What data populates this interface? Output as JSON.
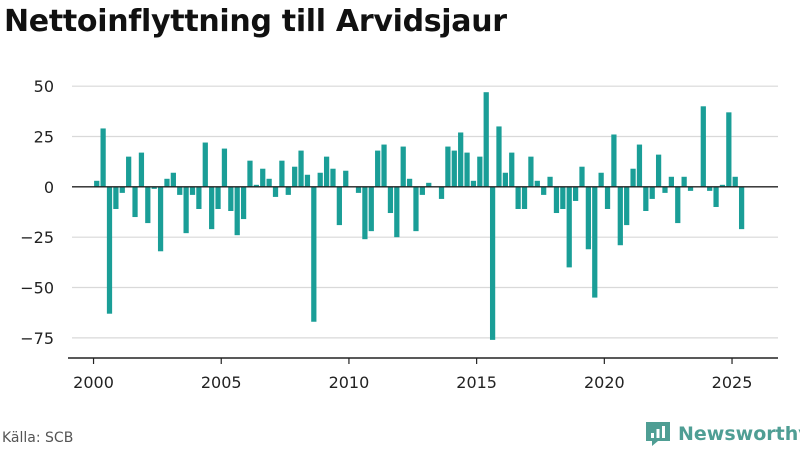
{
  "title": "Nettoinflyttning till Arvidsjaur",
  "source": "Källa: SCB",
  "brand": {
    "name": "Newsworthy",
    "logo_icon": "newsworthy-logo-icon"
  },
  "colors": {
    "bar": "#1a9e97",
    "grid": "#d9d9d9",
    "axis": "#222222",
    "brand": "#4f9e94"
  },
  "chart_data": {
    "type": "bar",
    "title": "Nettoinflyttning till Arvidsjaur",
    "xlabel": "",
    "ylabel": "",
    "ylim": [
      -85,
      62
    ],
    "xlim": [
      1999.0,
      2026.8
    ],
    "grid": true,
    "y_ticks": [
      50,
      25,
      0,
      -25,
      -50,
      -75
    ],
    "y_tick_labels": [
      "50",
      "25",
      "0",
      "−25",
      "−50",
      "−75"
    ],
    "x_ticks": [
      2000,
      2005,
      2010,
      2015,
      2020,
      2025
    ],
    "x_tick_labels": [
      "2000",
      "2005",
      "2010",
      "2015",
      "2020",
      "2025"
    ],
    "series": [
      {
        "frequency": "quarterly",
        "start": "2000 Q1",
        "values": [
          3,
          29,
          -63,
          -11,
          -3,
          15,
          -15,
          17,
          -18,
          -1,
          -32,
          4,
          7,
          -4,
          -23,
          -4,
          -11,
          22,
          -21,
          -11,
          19,
          -12,
          -24,
          -16,
          13,
          1,
          9,
          4,
          -5,
          13,
          -4,
          10,
          18,
          6,
          -67,
          7,
          15,
          9,
          -19,
          8,
          0,
          -3,
          -26,
          -22,
          18,
          21,
          -13,
          -25,
          20,
          4,
          -22,
          -4,
          2,
          0,
          -6,
          20,
          18,
          27,
          17,
          3,
          15,
          47,
          -76,
          30,
          7,
          17,
          -11,
          -11,
          15,
          3,
          -4,
          5,
          -13,
          -11,
          -40,
          -7,
          10,
          -31,
          -55,
          7,
          -11,
          26,
          -29,
          -19,
          9,
          21,
          -12,
          -6,
          16,
          -3,
          5,
          -18,
          5,
          -2,
          0,
          40,
          -2,
          -10,
          1,
          37,
          5,
          -21
        ]
      }
    ]
  }
}
